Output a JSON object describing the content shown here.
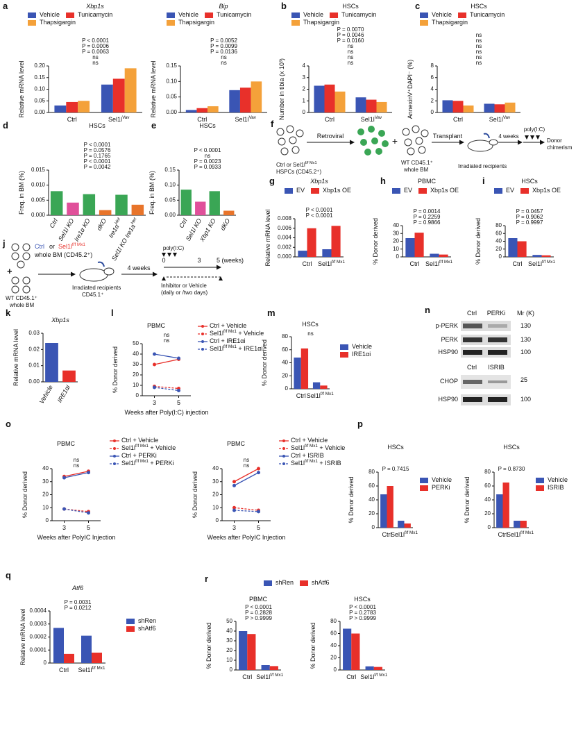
{
  "chart_data": [
    {
      "panel": "a",
      "type": "bar",
      "title": "Xbp1s",
      "y_label": "Relative mRNA level",
      "categories": [
        "Ctrl",
        "Sel1lVav"
      ],
      "series": [
        {
          "name": "Vehicle",
          "color": "#3a55b4",
          "values": [
            0.03,
            0.12
          ]
        },
        {
          "name": "Tunicamycin",
          "color": "#e8302a",
          "values": [
            0.045,
            0.145
          ]
        },
        {
          "name": "Thapsigargin",
          "color": "#f4a13a",
          "values": [
            0.05,
            0.19
          ]
        }
      ],
      "ylim": [
        0,
        0.2
      ],
      "yticks": [
        {
          "value": 0,
          "label": "0.00"
        },
        0.05,
        {
          "value": 0.1,
          "label": "0.10"
        },
        0.15,
        {
          "value": 0.2,
          "label": "0.20"
        }
      ],
      "annotations": [
        "P < 0.0001",
        "P = 0.0006",
        "P = 0.0063",
        "ns",
        "ns"
      ]
    },
    {
      "type": "bar",
      "title": "Bip",
      "y_label": "Relative mRNA level",
      "categories": [
        "Ctrl",
        "Sel1lVav"
      ],
      "series": [
        {
          "name": "Vehicle",
          "color": "#3a55b4",
          "values": [
            0.008,
            0.072
          ]
        },
        {
          "name": "Tunicamycin",
          "color": "#e8302a",
          "values": [
            0.014,
            0.08
          ]
        },
        {
          "name": "Thapsigargin",
          "color": "#f4a13a",
          "values": [
            0.02,
            0.1
          ]
        }
      ],
      "ylim": [
        0,
        0.15
      ],
      "yticks": [
        {
          "value": 0,
          "label": "0.00"
        },
        0.05,
        {
          "value": 0.1,
          "label": "0.10"
        },
        0.15
      ],
      "annotations": [
        "P = 0.0052",
        "P = 0.0099",
        "P = 0.0136",
        "ns",
        "ns"
      ]
    },
    {
      "panel": "b",
      "type": "bar",
      "title": "HSCs",
      "y_label": "Number in tibia (x 10³)",
      "categories": [
        "Ctrl",
        "Sel1lVav"
      ],
      "series": [
        {
          "name": "Vehicle",
          "color": "#3a55b4",
          "values": [
            2.3,
            1.3
          ]
        },
        {
          "name": "Tunicamycin",
          "color": "#e8302a",
          "values": [
            2.4,
            1.1
          ]
        },
        {
          "name": "Thapsigargin",
          "color": "#f4a13a",
          "values": [
            1.8,
            0.9
          ]
        }
      ],
      "ylim": [
        0,
        4
      ],
      "yticks": [
        0,
        1,
        2,
        3,
        4
      ],
      "annotations": [
        "P = 0.0070",
        "P = 0.0046",
        "P = 0.0160",
        "ns",
        "ns",
        "ns",
        "ns"
      ]
    },
    {
      "panel": "c",
      "type": "bar",
      "title": "HSCs",
      "y_label": "AnnexinV⁺DAPI⁻ (%)",
      "categories": [
        "Ctrl",
        "Sel1lVav"
      ],
      "series": [
        {
          "name": "Vehicle",
          "color": "#3a55b4",
          "values": [
            2.1,
            1.5
          ]
        },
        {
          "name": "Tunicamycin",
          "color": "#e8302a",
          "values": [
            2.0,
            1.4
          ]
        },
        {
          "name": "Thapsigargin",
          "color": "#f4a13a",
          "values": [
            1.2,
            1.7
          ]
        }
      ],
      "ylim": [
        0,
        8
      ],
      "yticks": [
        0,
        2,
        4,
        6,
        8
      ],
      "annotations": [
        "ns",
        "ns",
        "ns",
        "ns",
        "ns",
        "ns"
      ]
    },
    {
      "panel": "d",
      "type": "bar",
      "title": "HSCs",
      "y_label": "Freq. in BM (%)",
      "categories": [
        "Ctrl",
        "Sel1l KO",
        "Ire1α KO",
        "dKO",
        "Ire1αHet",
        "Sel1l KO Ire1aHet"
      ],
      "values": [
        0.008,
        0.0042,
        0.007,
        0.0017,
        0.0068,
        0.0035
      ],
      "colors": [
        "#3aa655",
        "#e0509a",
        "#3aa655",
        "#e8742a",
        "#3aa655",
        "#e8742a"
      ],
      "ylim": [
        0,
        0.015
      ],
      "yticks": [
        {
          "value": 0,
          "label": "0.000"
        },
        0.005,
        {
          "value": 0.01,
          "label": "0.010"
        },
        0.015
      ],
      "annotations": [
        "P < 0.0001",
        "P = 0.0576",
        "P = 0.1765",
        "P < 0.0001",
        "P = 0.0042"
      ]
    },
    {
      "panel": "e",
      "type": "bar",
      "title": "HSCs",
      "y_label": "Freq. in BM (%)",
      "categories": [
        "Ctrl",
        "Sel1l KO",
        "Xbp1 KO",
        "dKO"
      ],
      "values": [
        0.085,
        0.045,
        0.08,
        0.015
      ],
      "colors": [
        "#3aa655",
        "#e0509a",
        "#3aa655",
        "#e8742a"
      ],
      "ylim": [
        0,
        0.15
      ],
      "yticks": [
        {
          "value": 0,
          "label": "0.00"
        },
        0.05,
        {
          "value": 0.1,
          "label": "0.10"
        },
        0.15
      ],
      "annotations": [
        "P < 0.0001",
        "ns",
        "P = 0.0023",
        "P = 0.0933"
      ]
    },
    {
      "panel": "g",
      "type": "bar",
      "title": "Xbp1s",
      "y_label": "Relative mRNA level",
      "categories": [
        "Ctrl",
        "Sel1lf/f Mx1"
      ],
      "series": [
        {
          "name": "EV",
          "color": "#3a55b4",
          "values": [
            0.0013,
            0.0016
          ]
        },
        {
          "name": "Xbp1s OE",
          "color": "#e8302a",
          "values": [
            0.006,
            0.0065
          ]
        }
      ],
      "ylim": [
        0,
        0.008
      ],
      "yticks": [
        {
          "value": 0,
          "label": "0.000"
        },
        0.002,
        0.004,
        0.006,
        0.008
      ],
      "annotations": [
        "P < 0.0001",
        "P < 0.0001"
      ]
    },
    {
      "panel": "h",
      "type": "bar",
      "title": "PBMC",
      "y_label": "% Donor derived",
      "categories": [
        "Ctrl",
        "Sel1lf/f Mx1"
      ],
      "series": [
        {
          "name": "EV",
          "color": "#3a55b4",
          "values": [
            24,
            4
          ]
        },
        {
          "name": "Xbp1s OE",
          "color": "#e8302a",
          "values": [
            31,
            3
          ]
        }
      ],
      "ylim": [
        0,
        40
      ],
      "yticks": [
        0,
        10,
        20,
        30,
        40
      ],
      "annotations": [
        "P = 0.0014",
        "P = 0.2259",
        "P = 0.9866"
      ]
    },
    {
      "panel": "i",
      "type": "bar",
      "title": "HSCs",
      "y_label": "% Donor derived",
      "categories": [
        "Ctrl",
        "Sel1lf/f Mx1"
      ],
      "series": [
        {
          "name": "EV",
          "color": "#3a55b4",
          "values": [
            48,
            5
          ]
        },
        {
          "name": "Xbp1s OE",
          "color": "#e8302a",
          "values": [
            40,
            4
          ]
        }
      ],
      "ylim": [
        0,
        80
      ],
      "yticks": [
        0,
        20,
        40,
        60,
        80
      ],
      "annotations": [
        "P = 0.0457",
        "P = 0.9062",
        "P = 0.9997"
      ]
    },
    {
      "panel": "k",
      "type": "bar",
      "title": "Xbp1s",
      "y_label": "Relative mRNA level",
      "categories": [
        "Vehicle",
        "IRE1αi"
      ],
      "values": [
        0.024,
        0.007
      ],
      "colors": [
        "#3a55b4",
        "#e8302a"
      ],
      "ylim": [
        0,
        0.03
      ],
      "yticks": [
        {
          "value": 0,
          "label": "0.00"
        },
        0.01,
        0.02,
        0.03
      ]
    },
    {
      "panel": "l",
      "type": "line",
      "title": "PBMC",
      "y_label": "% Donor derived",
      "x_label": "Weeks after Poly(I:C) injection",
      "x": [
        3,
        5
      ],
      "xlim": [
        2,
        6
      ],
      "xticks": [
        3,
        5
      ],
      "ylim": [
        0,
        50
      ],
      "yticks": [
        0,
        10,
        20,
        30,
        40,
        50
      ],
      "series": [
        {
          "name": "Ctrl + Vehicle",
          "color": "#e8302a",
          "values": [
            30,
            35
          ]
        },
        {
          "name": "Sel1lf/f Mx1 + Vehicle",
          "color": "#e8302a",
          "dashed": true,
          "values": [
            9,
            7
          ]
        },
        {
          "name": "Ctrl + IRE1αi",
          "color": "#3a55b4",
          "values": [
            40,
            36
          ]
        },
        {
          "name": "Sel1lf/f Mx1 + IRE1αi",
          "color": "#3a55b4",
          "dashed": true,
          "values": [
            8,
            5
          ]
        }
      ],
      "annotations": [
        "ns",
        "ns"
      ]
    },
    {
      "panel": "m",
      "type": "bar",
      "title": "HSCs",
      "y_label": "% Donor derived",
      "categories": [
        "Ctrl",
        "Sel1lf/f Mx1"
      ],
      "series": [
        {
          "name": "Vehicle",
          "color": "#3a55b4",
          "values": [
            48,
            10
          ]
        },
        {
          "name": "IRE1αi",
          "color": "#e8302a",
          "values": [
            62,
            5
          ]
        }
      ],
      "ylim": [
        0,
        80
      ],
      "yticks": [
        0,
        20,
        40,
        60,
        80
      ],
      "annotations": [
        "ns"
      ]
    },
    {
      "panel": "o",
      "type": "line",
      "title": "PBMC",
      "y_label": "% Donor derived",
      "x_label": "Weeks after PolyIC Injection",
      "x": [
        3,
        5
      ],
      "xlim": [
        2,
        6
      ],
      "xticks": [
        3,
        5
      ],
      "ylim": [
        0,
        40
      ],
      "yticks": [
        0,
        10,
        20,
        30,
        40
      ],
      "series": [
        {
          "name": "Ctrl + Vehicle",
          "color": "#e8302a",
          "values": [
            34,
            38
          ]
        },
        {
          "name": "Sel1lf/f Mx1 + Vehicle",
          "color": "#e8302a",
          "dashed": true,
          "values": [
            9,
            7
          ]
        },
        {
          "name": "Ctrl + PERKi",
          "color": "#3a55b4",
          "values": [
            33,
            37
          ]
        },
        {
          "name": "Sel1lf/f Mx1 + PERKi",
          "color": "#3a55b4",
          "dashed": true,
          "values": [
            9,
            6
          ]
        }
      ],
      "annotations": [
        "ns",
        "ns"
      ]
    },
    {
      "type": "line",
      "title": "PBMC",
      "y_label": "% Donor derived",
      "x_label": "Weeks after PolyIC Injection",
      "x": [
        3,
        5
      ],
      "xlim": [
        2,
        6
      ],
      "xticks": [
        3,
        5
      ],
      "ylim": [
        0,
        40
      ],
      "yticks": [
        0,
        10,
        20,
        30,
        40
      ],
      "series": [
        {
          "name": "Ctrl + Vehicle",
          "color": "#e8302a",
          "values": [
            30,
            40
          ]
        },
        {
          "name": "Sel1lf/f Mx1 + Vehicle",
          "color": "#e8302a",
          "dashed": true,
          "values": [
            10,
            8
          ]
        },
        {
          "name": "Ctrl + ISRIB",
          "color": "#3a55b4",
          "values": [
            27,
            37
          ]
        },
        {
          "name": "Sel1lf/f Mx1 + ISRIB",
          "color": "#3a55b4",
          "dashed": true,
          "values": [
            8,
            7
          ]
        }
      ],
      "annotations": [
        "ns",
        "ns"
      ]
    },
    {
      "panel": "p",
      "type": "bar",
      "title": "HSCs",
      "y_label": "% Donor derived",
      "categories": [
        "Ctrl",
        "Sel1lf/f Mx1"
      ],
      "series": [
        {
          "name": "Vehicle",
          "color": "#3a55b4",
          "values": [
            48,
            10
          ]
        },
        {
          "name": "PERKi",
          "color": "#e8302a",
          "values": [
            60,
            6
          ]
        }
      ],
      "ylim": [
        0,
        80
      ],
      "yticks": [
        0,
        20,
        40,
        60,
        80
      ],
      "annotations": [
        "P = 0.7415"
      ]
    },
    {
      "type": "bar",
      "title": "HSCs",
      "y_label": "% Donor derived",
      "categories": [
        "Ctrl",
        "Sel1lf/f Mx1"
      ],
      "series": [
        {
          "name": "Vehicle",
          "color": "#3a55b4",
          "values": [
            48,
            10
          ]
        },
        {
          "name": "ISRIB",
          "color": "#e8302a",
          "values": [
            65,
            10
          ]
        }
      ],
      "ylim": [
        0,
        80
      ],
      "yticks": [
        0,
        20,
        40,
        60,
        80
      ],
      "annotations": [
        "P = 0.8730"
      ]
    },
    {
      "panel": "q",
      "type": "bar",
      "title": "Atf6",
      "y_label": "Relative mRNA level",
      "categories": [
        "Ctrl",
        "Sel1lf/f Mx1"
      ],
      "series": [
        {
          "name": "shRen",
          "color": "#3a55b4",
          "values": [
            0.00027,
            0.00021
          ]
        },
        {
          "name": "shAtf6",
          "color": "#e8302a",
          "values": [
            7e-05,
            8e-05
          ]
        }
      ],
      "ylim": [
        0,
        0.0004
      ],
      "yticks": [
        0,
        0.0001,
        0.0002,
        0.0003,
        0.0004
      ],
      "annotations": [
        "P = 0.0031",
        "P = 0.0212"
      ]
    },
    {
      "panel": "r",
      "type": "bar",
      "title": "PBMC",
      "y_label": "% Donor derived",
      "categories": [
        "Ctrl",
        "Sel1lf/f Mx1"
      ],
      "series": [
        {
          "name": "shRen",
          "color": "#3a55b4",
          "values": [
            40,
            5
          ]
        },
        {
          "name": "shAtf6",
          "color": "#e8302a",
          "values": [
            37,
            4
          ]
        }
      ],
      "ylim": [
        0,
        50
      ],
      "yticks": [
        0,
        10,
        20,
        30,
        40,
        50
      ],
      "annotations": [
        "P < 0.0001",
        "P = 0.2828",
        "P > 0.9999"
      ]
    },
    {
      "type": "bar",
      "title": "HSCs",
      "y_label": "% Donor derived",
      "categories": [
        "Ctrl",
        "Sel1lf/f Mx1"
      ],
      "series": [
        {
          "color": "#3a55b4",
          "values": [
            68,
            6
          ]
        },
        {
          "color": "#e8302a",
          "values": [
            60,
            5
          ]
        }
      ],
      "ylim": [
        0,
        80
      ],
      "yticks": [
        0,
        20,
        40,
        60,
        80
      ],
      "annotations": [
        "P < 0.0001",
        "P = 0.2783",
        "P > 0.9999"
      ]
    }
  ],
  "diagrams": {
    "f": {
      "panel": "f",
      "texts": [
        "Retroviral",
        "Ctrl or Sel1lf/f Mx1",
        "HSPCs (CD45.2⁺)",
        "+",
        "WT CD45.1⁺",
        "whole BM",
        "Transplant",
        "Irradiated recipients",
        "4 weeks",
        "poly(I:C)",
        "Donor",
        "chimerism"
      ]
    },
    "j": {
      "panel": "j",
      "texts": [
        "Ctrl",
        "or",
        "Sel1lf/f Mx1",
        "whole BM (CD45.2⁺)",
        "+",
        "WT CD45.1⁺",
        "whole BM",
        "Irradiated recipients",
        "CD45.1⁺",
        "4 weeks",
        "poly(I:C)",
        "0",
        "3",
        "5 (weeks)",
        "Inhibitor or Vehicle",
        "(daily or /two days)"
      ]
    },
    "n": {
      "panel": "n",
      "texts": [
        "p-PERK",
        "PERK",
        "HSP90",
        "Ctrl",
        "PERKi",
        "Mr (K)",
        "130",
        "130",
        "100",
        "Ctrl",
        "ISRIB",
        "CHOP",
        "HSP90",
        "25",
        "100"
      ]
    }
  }
}
